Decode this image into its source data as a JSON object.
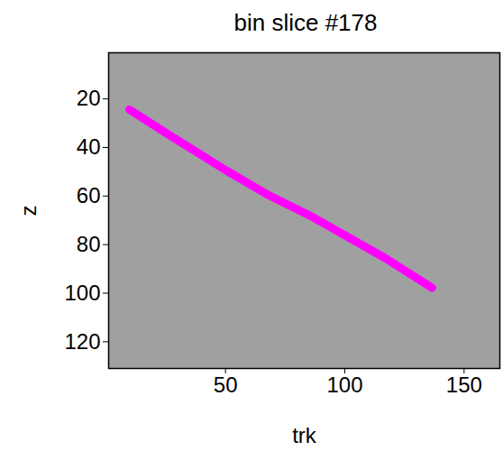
{
  "chart_data": {
    "type": "line",
    "title": "bin slice #178",
    "xlabel": "trk",
    "ylabel": "z",
    "x": [
      9.7,
      27.6,
      50,
      68,
      87,
      117,
      136.6
    ],
    "values": [
      24.4,
      35.6,
      49.3,
      59.6,
      68.9,
      85.6,
      97.8
    ],
    "color": "#ff00ff",
    "xlim": [
      1,
      165
    ],
    "ylim": [
      131,
      1
    ],
    "xticks": [
      50,
      100,
      150
    ],
    "yticks": [
      20,
      40,
      60,
      80,
      100,
      120
    ],
    "grid": false
  }
}
